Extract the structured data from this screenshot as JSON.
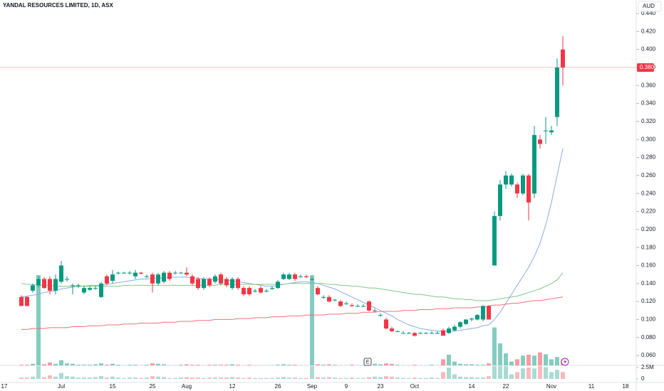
{
  "chart_data": {
    "type": "candlestick",
    "title": "YANDAL RESOURCES LIMITED, 1D, ASX",
    "currency": "AUD",
    "earnings_marker": "E",
    "up_color": "#089981",
    "down_color": "#f23645",
    "categories": [
      "17",
      null,
      null,
      null,
      null,
      null,
      null,
      null,
      null,
      null,
      "Jul",
      null,
      null,
      null,
      null,
      null,
      null,
      null,
      null,
      "15",
      null,
      null,
      null,
      null,
      null,
      null,
      "25",
      null,
      null,
      null,
      null,
      null,
      "Aug",
      null,
      null,
      null,
      null,
      null,
      null,
      null,
      "12",
      null,
      null,
      null,
      null,
      null,
      null,
      null,
      "26",
      null,
      null,
      null,
      null,
      null,
      "Sep",
      null,
      null,
      null,
      null,
      null,
      "9",
      null,
      null,
      null,
      null,
      null,
      "23",
      null,
      null,
      null,
      null,
      null,
      "Oct",
      null,
      null,
      null,
      null,
      null,
      null,
      null,
      null,
      null,
      "14",
      null,
      null,
      null,
      null,
      null,
      "22",
      null,
      null,
      null,
      null,
      null,
      null,
      null,
      "Nov",
      null,
      null,
      null,
      null,
      null,
      null,
      "11",
      null,
      null,
      null,
      null,
      null,
      "18"
    ],
    "ohlc": [
      null,
      null,
      null,
      [
        0.125,
        0.127,
        0.115,
        0.115
      ],
      [
        0.125,
        0.126,
        0.115,
        0.115
      ],
      [
        0.132,
        0.14,
        0.13,
        0.138
      ],
      [
        0.138,
        0.148,
        0.136,
        0.145
      ],
      [
        0.145,
        0.147,
        0.134,
        0.135
      ],
      [
        0.145,
        0.148,
        0.128,
        0.132
      ],
      [
        0.132,
        0.15,
        0.128,
        0.145
      ],
      [
        0.142,
        0.165,
        0.14,
        0.16
      ],
      [
        0.145,
        0.148,
        0.142,
        0.145
      ],
      [
        0.138,
        0.14,
        0.128,
        0.138
      ],
      [
        0.137,
        0.14,
        0.135,
        0.138
      ],
      [
        0.13,
        0.138,
        0.128,
        0.135
      ],
      [
        0.133,
        0.137,
        0.132,
        0.135
      ],
      [
        0.135,
        0.137,
        0.133,
        0.135
      ],
      [
        0.125,
        0.142,
        0.124,
        0.14
      ],
      [
        0.148,
        0.15,
        0.138,
        0.14
      ],
      [
        0.143,
        0.155,
        0.14,
        0.15
      ],
      [
        0.152,
        0.153,
        0.15,
        0.152
      ],
      [
        0.152,
        0.153,
        0.151,
        0.152
      ],
      [
        0.152,
        0.154,
        0.15,
        0.152
      ],
      [
        0.148,
        0.155,
        0.145,
        0.152
      ],
      [
        0.152,
        0.153,
        0.15,
        0.151
      ],
      [
        0.148,
        0.15,
        0.146,
        0.148
      ],
      [
        0.15,
        0.152,
        0.13,
        0.14
      ],
      [
        0.14,
        0.152,
        0.138,
        0.15
      ],
      [
        0.142,
        0.154,
        0.14,
        0.152
      ],
      [
        0.152,
        0.154,
        0.143,
        0.145
      ],
      [
        0.152,
        0.154,
        0.15,
        0.152
      ],
      [
        0.152,
        0.153,
        0.151,
        0.152
      ],
      [
        0.152,
        0.158,
        0.148,
        0.15
      ],
      [
        0.148,
        0.15,
        0.138,
        0.14
      ],
      [
        0.145,
        0.147,
        0.133,
        0.135
      ],
      [
        0.135,
        0.147,
        0.133,
        0.145
      ],
      [
        0.145,
        0.147,
        0.136,
        0.138
      ],
      [
        0.142,
        0.15,
        0.14,
        0.148
      ],
      [
        0.15,
        0.152,
        0.138,
        0.14
      ],
      [
        0.145,
        0.147,
        0.136,
        0.138
      ],
      [
        0.135,
        0.147,
        0.133,
        0.145
      ],
      [
        0.145,
        0.147,
        0.133,
        0.135
      ],
      [
        0.135,
        0.137,
        0.126,
        0.128
      ],
      [
        0.135,
        0.137,
        0.126,
        0.128
      ],
      [
        0.132,
        0.134,
        0.13,
        0.132
      ],
      [
        0.135,
        0.137,
        0.129,
        0.13
      ],
      [
        0.132,
        0.134,
        0.13,
        0.132
      ],
      [
        0.134,
        0.137,
        0.133,
        0.135
      ],
      [
        0.135,
        0.144,
        0.134,
        0.142
      ],
      [
        0.145,
        0.152,
        0.144,
        0.15
      ],
      [
        0.145,
        0.152,
        0.144,
        0.15
      ],
      [
        0.15,
        0.152,
        0.143,
        0.145
      ],
      [
        0.148,
        0.15,
        0.146,
        0.148
      ],
      [
        0.148,
        0.15,
        0.146,
        0.147
      ],
      [
        0.145,
        0.147,
        0.143,
        0.145
      ],
      [
        0.135,
        0.137,
        0.127,
        0.128
      ],
      [
        0.125,
        0.127,
        0.123,
        0.125
      ],
      [
        0.125,
        0.127,
        0.119,
        0.12
      ],
      [
        0.122,
        0.123,
        0.12,
        0.122
      ],
      [
        0.12,
        0.122,
        0.114,
        0.115
      ],
      [
        0.118,
        0.12,
        0.116,
        0.118
      ],
      [
        0.116,
        0.118,
        0.114,
        0.115
      ],
      [
        0.115,
        0.117,
        0.114,
        0.115
      ],
      [
        0.115,
        0.117,
        0.114,
        0.115
      ],
      [
        0.12,
        0.121,
        0.109,
        0.11
      ],
      [
        0.11,
        0.112,
        0.108,
        0.11
      ],
      [
        0.105,
        0.107,
        0.103,
        0.105
      ],
      [
        0.1,
        0.102,
        0.089,
        0.09
      ],
      [
        0.09,
        0.092,
        0.086,
        0.087
      ],
      [
        0.087,
        0.088,
        0.086,
        0.087
      ],
      [
        0.085,
        0.087,
        0.084,
        0.085
      ],
      [
        0.085,
        0.086,
        0.084,
        0.085
      ],
      [
        0.085,
        0.086,
        0.081,
        0.082
      ],
      [
        0.085,
        0.086,
        0.084,
        0.085
      ],
      [
        0.085,
        0.086,
        0.084,
        0.085
      ],
      [
        0.085,
        0.087,
        0.084,
        0.085
      ],
      [
        0.085,
        0.087,
        0.084,
        0.085
      ],
      [
        0.088,
        0.09,
        0.082,
        0.082
      ],
      [
        0.085,
        0.092,
        0.084,
        0.09
      ],
      [
        0.088,
        0.094,
        0.087,
        0.092
      ],
      [
        0.092,
        0.098,
        0.09,
        0.097
      ],
      [
        0.095,
        0.1,
        0.094,
        0.1
      ],
      [
        0.1,
        0.102,
        0.098,
        0.101
      ],
      [
        0.1,
        0.106,
        0.099,
        0.105
      ],
      [
        0.1,
        0.116,
        0.098,
        0.115
      ],
      [
        0.115,
        0.116,
        0.1,
        0.1
      ],
      [
        0.16,
        0.22,
        0.16,
        0.215
      ],
      [
        0.215,
        0.255,
        0.21,
        0.25
      ],
      [
        0.25,
        0.265,
        0.245,
        0.26
      ],
      [
        0.25,
        0.262,
        0.248,
        0.26
      ],
      [
        0.25,
        0.252,
        0.235,
        0.24
      ],
      [
        0.24,
        0.262,
        0.238,
        0.26
      ],
      [
        0.26,
        0.262,
        0.21,
        0.23
      ],
      [
        0.24,
        0.315,
        0.235,
        0.305
      ],
      [
        0.3,
        0.305,
        0.29,
        0.295
      ],
      [
        0.31,
        0.325,
        0.295,
        0.31
      ],
      [
        0.308,
        0.315,
        0.305,
        0.31
      ],
      [
        0.325,
        0.39,
        0.315,
        0.38
      ],
      [
        0.4,
        0.415,
        0.36,
        0.38
      ],
      null,
      null,
      null,
      null,
      null,
      null,
      null,
      null,
      null,
      null,
      null
    ],
    "volume": [
      null,
      null,
      null,
      0.3,
      0.3,
      0.5,
      20,
      0.4,
      0.8,
      0.5,
      1.3,
      0.6,
      0.5,
      0.3,
      0.3,
      0.3,
      0.4,
      0.6,
      0.3,
      0.5,
      0.3,
      0.2,
      0.3,
      0.3,
      0.2,
      0.3,
      0.6,
      0.5,
      0.4,
      0.2,
      0.2,
      0.3,
      0.4,
      0.3,
      0.3,
      0.2,
      0.3,
      0.3,
      0.3,
      0.3,
      0.4,
      0.3,
      0.2,
      0.3,
      0.2,
      0.2,
      0.2,
      0.2,
      0.3,
      0.4,
      0.3,
      0.3,
      0.2,
      0.2,
      20,
      0.4,
      0.3,
      0.4,
      0.3,
      0.2,
      0.2,
      0.3,
      0.2,
      0.2,
      0.4,
      0.5,
      0.4,
      0.6,
      0.5,
      0.3,
      0.2,
      0.2,
      0.3,
      0.2,
      0.2,
      0.3,
      0.2,
      1.5,
      2.5,
      1,
      0.5,
      0.4,
      0.4,
      0.3,
      0.3,
      0.6,
      8.5,
      5,
      2.8,
      1,
      1.5,
      2.3,
      2.5,
      2.3,
      3,
      2.6,
      1.5,
      2,
      1.5,
      null,
      null,
      null,
      null,
      null,
      null,
      null,
      null,
      null,
      null,
      null
    ],
    "moving_averages": [
      {
        "color": "#8fa8e8",
        "values": [
          null,
          null,
          null,
          0.125,
          0.126,
          0.127,
          0.128,
          0.13,
          0.131,
          0.132,
          0.134,
          0.135,
          0.136,
          0.137,
          0.137,
          0.138,
          0.138,
          0.138,
          0.139,
          0.14,
          0.141,
          0.142,
          0.143,
          0.144,
          0.145,
          0.145,
          0.146,
          0.146,
          0.146,
          0.147,
          0.147,
          0.147,
          0.147,
          0.146,
          0.146,
          0.145,
          0.145,
          0.145,
          0.144,
          0.144,
          0.143,
          0.142,
          0.141,
          0.14,
          0.139,
          0.138,
          0.137,
          0.137,
          0.138,
          0.139,
          0.14,
          0.141,
          0.142,
          0.142,
          0.141,
          0.14,
          0.138,
          0.136,
          0.134,
          0.131,
          0.128,
          0.125,
          0.122,
          0.119,
          0.116,
          0.113,
          0.11,
          0.107,
          0.104,
          0.1,
          0.097,
          0.094,
          0.092,
          0.09,
          0.089,
          0.088,
          0.087,
          0.087,
          0.087,
          0.087,
          0.088,
          0.089,
          0.09,
          0.091,
          0.093,
          0.094,
          0.1,
          0.108,
          0.118,
          0.128,
          0.138,
          0.148,
          0.158,
          0.17,
          0.185,
          0.205,
          0.23,
          0.26,
          0.29,
          null,
          null,
          null,
          null,
          null,
          null,
          null,
          null,
          null,
          null,
          null
        ]
      },
      {
        "color": "#81c784",
        "values": [
          null,
          null,
          null,
          0.14,
          0.139,
          0.139,
          0.138,
          0.138,
          0.138,
          0.137,
          0.137,
          0.137,
          0.137,
          0.137,
          0.137,
          0.137,
          0.137,
          0.137,
          0.137,
          0.137,
          0.137,
          0.138,
          0.138,
          0.138,
          0.138,
          0.138,
          0.138,
          0.138,
          0.138,
          0.138,
          0.138,
          0.138,
          0.138,
          0.138,
          0.138,
          0.138,
          0.138,
          0.138,
          0.139,
          0.139,
          0.139,
          0.139,
          0.139,
          0.139,
          0.139,
          0.139,
          0.139,
          0.139,
          0.139,
          0.139,
          0.14,
          0.14,
          0.14,
          0.14,
          0.14,
          0.14,
          0.14,
          0.139,
          0.139,
          0.138,
          0.138,
          0.137,
          0.137,
          0.136,
          0.135,
          0.135,
          0.134,
          0.133,
          0.132,
          0.131,
          0.13,
          0.129,
          0.128,
          0.128,
          0.127,
          0.126,
          0.125,
          0.125,
          0.124,
          0.123,
          0.123,
          0.122,
          0.122,
          0.121,
          0.121,
          0.121,
          0.122,
          0.123,
          0.124,
          0.125,
          0.126,
          0.128,
          0.13,
          0.132,
          0.134,
          0.137,
          0.14,
          0.144,
          0.152,
          null,
          null,
          null,
          null,
          null,
          null,
          null,
          null,
          null,
          null,
          null
        ]
      },
      {
        "color": "#f0707a",
        "values": [
          null,
          null,
          null,
          0.089,
          0.089,
          0.09,
          0.09,
          0.09,
          0.091,
          0.091,
          0.091,
          0.091,
          0.092,
          0.092,
          0.092,
          0.093,
          0.093,
          0.093,
          0.094,
          0.094,
          0.094,
          0.095,
          0.095,
          0.095,
          0.096,
          0.096,
          0.096,
          0.096,
          0.097,
          0.097,
          0.097,
          0.098,
          0.098,
          0.098,
          0.099,
          0.099,
          0.099,
          0.1,
          0.1,
          0.1,
          0.1,
          0.101,
          0.101,
          0.101,
          0.102,
          0.102,
          0.102,
          0.103,
          0.103,
          0.103,
          0.104,
          0.104,
          0.104,
          0.105,
          0.105,
          0.105,
          0.105,
          0.106,
          0.106,
          0.106,
          0.107,
          0.107,
          0.107,
          0.108,
          0.108,
          0.108,
          0.109,
          0.109,
          0.109,
          0.109,
          0.11,
          0.11,
          0.11,
          0.111,
          0.111,
          0.111,
          0.112,
          0.112,
          0.112,
          0.113,
          0.113,
          0.113,
          0.113,
          0.114,
          0.114,
          0.115,
          0.116,
          0.116,
          0.117,
          0.118,
          0.118,
          0.119,
          0.12,
          0.121,
          0.121,
          0.122,
          0.123,
          0.124,
          0.125,
          null,
          null,
          null,
          null,
          null,
          null,
          null,
          null,
          null,
          null,
          null
        ]
      }
    ],
    "last_price": {
      "value": 0.38,
      "label": "0.380"
    },
    "ylim": [
      0.049,
      0.455
    ],
    "yticks": [
      {
        "value": 0.44,
        "label": "0.440"
      },
      {
        "value": 0.42,
        "label": "0.420"
      },
      {
        "value": 0.4,
        "label": "0.400"
      },
      {
        "value": 0.38,
        "label": "0.380"
      },
      {
        "value": 0.36,
        "label": "0.360"
      },
      {
        "value": 0.34,
        "label": "0.340"
      },
      {
        "value": 0.32,
        "label": "0.320"
      },
      {
        "value": 0.3,
        "label": "0.300"
      },
      {
        "value": 0.28,
        "label": "0.280"
      },
      {
        "value": 0.26,
        "label": "0.260"
      },
      {
        "value": 0.24,
        "label": "0.240"
      },
      {
        "value": 0.22,
        "label": "0.220"
      },
      {
        "value": 0.2,
        "label": "0.200"
      },
      {
        "value": 0.18,
        "label": "0.180"
      },
      {
        "value": 0.16,
        "label": "0.160"
      },
      {
        "value": 0.14,
        "label": "0.140"
      },
      {
        "value": 0.12,
        "label": "0.120"
      },
      {
        "value": 0.1,
        "label": "0.100"
      },
      {
        "value": 0.08,
        "label": "0.080"
      },
      {
        "value": 0.06,
        "label": "0.060"
      }
    ],
    "volume_ylim": [
      0,
      3
    ],
    "volume_ticks": [
      {
        "value": 2.5,
        "label": "2.5M"
      },
      0
    ]
  }
}
